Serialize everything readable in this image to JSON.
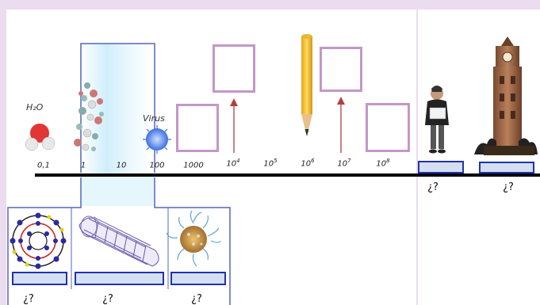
{
  "scale": {
    "labels": [
      {
        "base": "0,1",
        "exp": ""
      },
      {
        "base": "1",
        "exp": ""
      },
      {
        "base": "10",
        "exp": ""
      },
      {
        "base": "100",
        "exp": ""
      },
      {
        "base": "1000",
        "exp": ""
      },
      {
        "base": "10",
        "exp": "4"
      },
      {
        "base": "10",
        "exp": "5"
      },
      {
        "base": "10",
        "exp": "6"
      },
      {
        "base": "10",
        "exp": "7"
      },
      {
        "base": "10",
        "exp": "8"
      }
    ]
  },
  "objects": {
    "water": {
      "label": "H₂O"
    },
    "virus": {
      "label": "Virus"
    }
  },
  "questions": {
    "person": "¿?",
    "tower": "¿?",
    "fullerene": "¿?",
    "nanotube": "¿?",
    "nanoparticle": "¿?"
  },
  "colors": {
    "background": "#ecdcef",
    "answer_fill": "#d4dff2",
    "answer_border": "#2233aa",
    "placeholder_border": "#c397c8",
    "arrow": "#b04040",
    "zoom_frame": "#5566bb"
  }
}
